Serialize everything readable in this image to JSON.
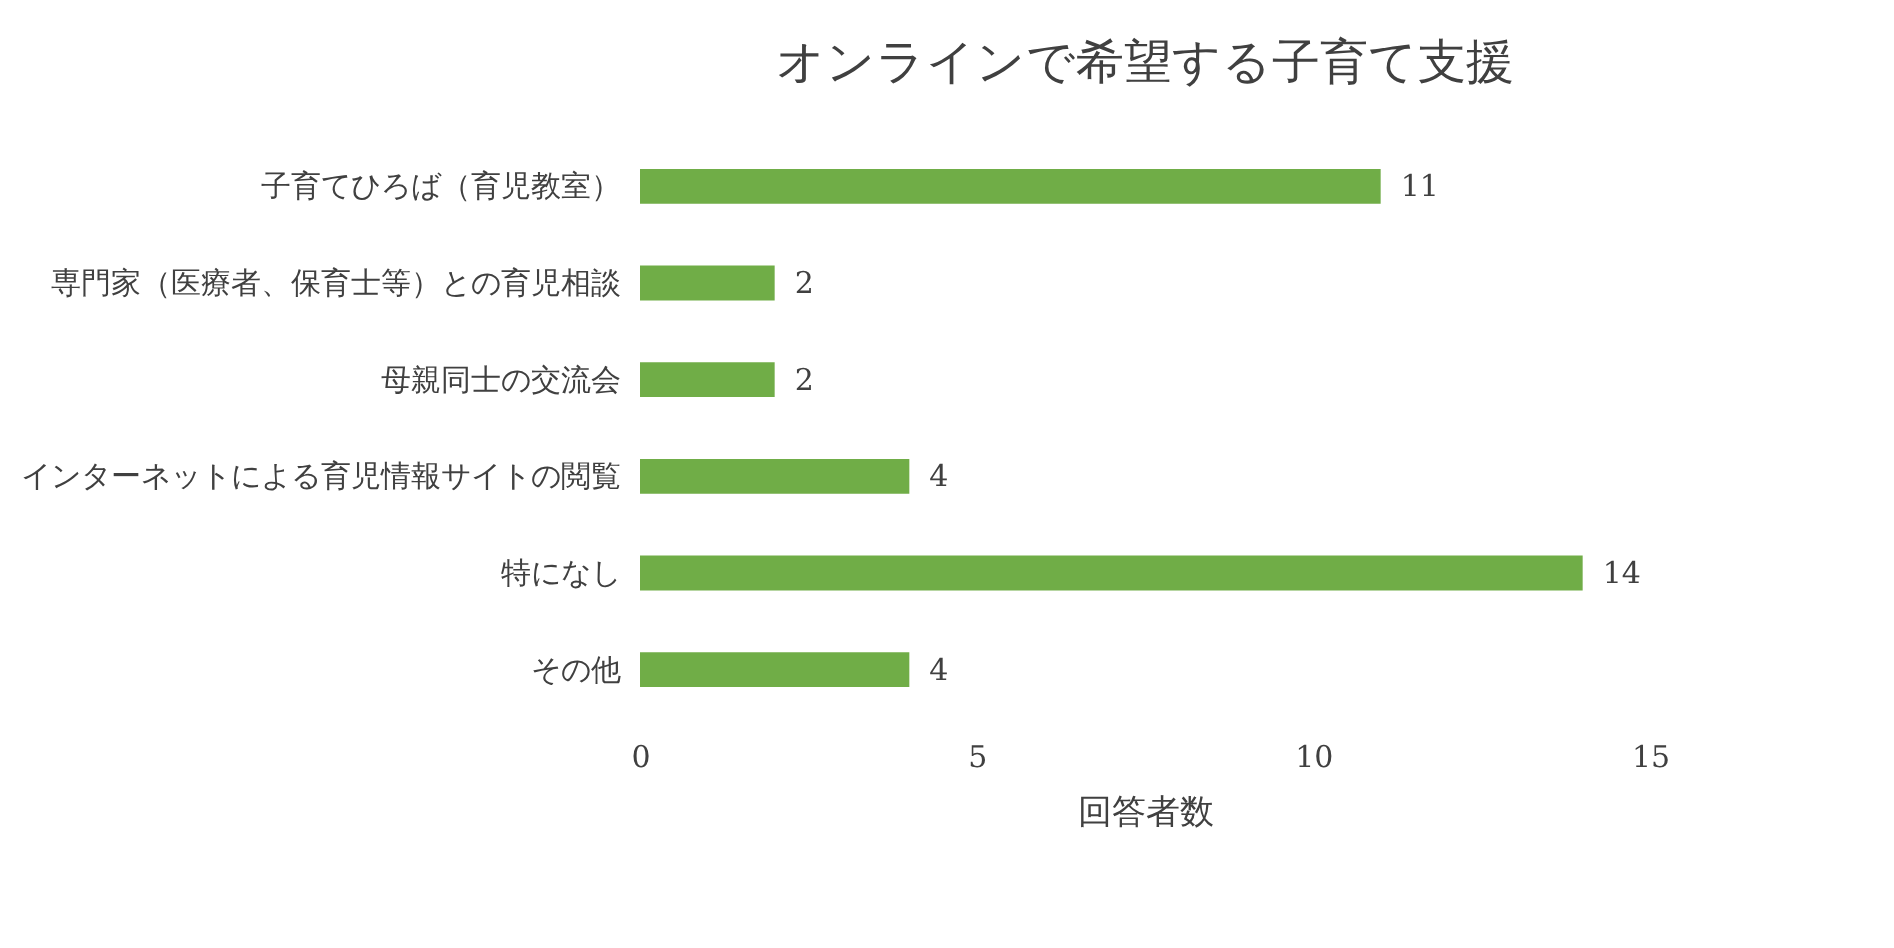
{
  "chart_data": {
    "type": "bar",
    "orientation": "horizontal",
    "title": "オンラインで希望する子育て支援",
    "categories": [
      "子育てひろば（育児教室）",
      "専門家（医療者、保育士等）との育児相談",
      "母親同士の交流会",
      "インターネットによる育児情報サイトの閲覧",
      "特になし",
      "その他"
    ],
    "values": [
      11,
      2,
      2,
      4,
      14,
      4
    ],
    "color": "#70ad47",
    "xlabel": "回答者数",
    "xlim": [
      0,
      15
    ],
    "xticks": [
      0,
      5,
      10,
      15
    ],
    "grid": false,
    "data_labels": true
  }
}
